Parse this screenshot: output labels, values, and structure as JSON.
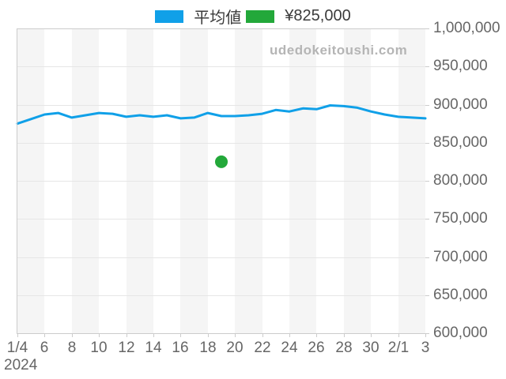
{
  "legend": {
    "items": [
      {
        "label": "平均値",
        "color": "#10a0e8"
      },
      {
        "label": "¥825,000",
        "color": "#23a83a"
      }
    ]
  },
  "watermark": "udedokeitoushi.com",
  "chart_data": {
    "type": "line",
    "title": "",
    "year_label": "2024",
    "x_categories": [
      "1/4",
      "1/5",
      "1/6",
      "1/7",
      "1/8",
      "1/9",
      "1/10",
      "1/11",
      "1/12",
      "1/13",
      "1/14",
      "1/15",
      "1/16",
      "1/17",
      "1/18",
      "1/19",
      "1/20",
      "1/21",
      "1/22",
      "1/23",
      "1/24",
      "1/25",
      "1/26",
      "1/27",
      "1/28",
      "1/29",
      "1/30",
      "1/31",
      "2/1",
      "2/2",
      "2/3"
    ],
    "x_tick_labels": [
      "1/4",
      "6",
      "8",
      "10",
      "12",
      "14",
      "16",
      "18",
      "20",
      "22",
      "24",
      "26",
      "28",
      "30",
      "2/1",
      "3"
    ],
    "x_tick_every": 2,
    "ylim": [
      600000,
      1000000
    ],
    "y_tick_step": 50000,
    "y_tick_labels": [
      "1,000,000",
      "950,000",
      "900,000",
      "850,000",
      "800,000",
      "750,000",
      "700,000",
      "650,000",
      "600,000"
    ],
    "grid": {
      "stripes": true,
      "stripe_color": "#f5f5f5",
      "gridline_color": "#e6e6e6",
      "axis_color": "#cccccc"
    },
    "legend_position": "top-center",
    "series": [
      {
        "name": "平均値",
        "type": "line",
        "color": "#10a0e8",
        "values": [
          875000,
          881000,
          887000,
          889000,
          883000,
          886000,
          889000,
          888000,
          884000,
          886000,
          884000,
          886000,
          882000,
          883000,
          889000,
          885000,
          885000,
          886000,
          888000,
          893000,
          891000,
          895000,
          894000,
          899000,
          898000,
          896000,
          891000,
          887000,
          884000,
          883000,
          882000
        ]
      },
      {
        "name": "¥825,000",
        "type": "point",
        "color": "#23a83a",
        "category": "1/19",
        "value": 825000,
        "marker_radius_px": 8
      }
    ]
  }
}
